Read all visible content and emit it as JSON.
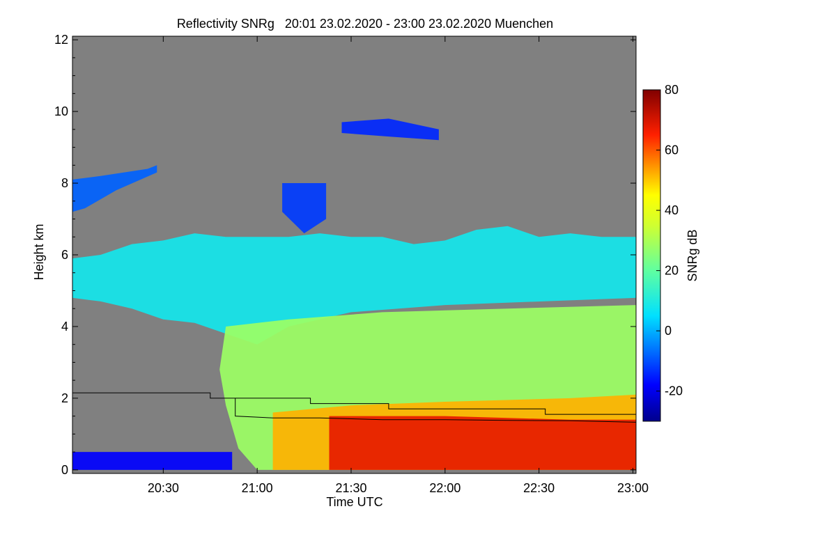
{
  "chart_data": {
    "type": "heatmap",
    "title": "Reflectivity SNRg   20:01 23.02.2020 - 23:00 23.02.2020 Muenchen",
    "xlabel": "Time UTC",
    "ylabel": "Height km",
    "colorbar_label": "SNRg dB",
    "xlim_minutes_utc": [
      1201,
      1381
    ],
    "ylim_km": [
      -0.1,
      12.1
    ],
    "x_ticks": [
      {
        "minutes_utc": 1230,
        "label": "20:30"
      },
      {
        "minutes_utc": 1260,
        "label": "21:00"
      },
      {
        "minutes_utc": 1290,
        "label": "21:30"
      },
      {
        "minutes_utc": 1320,
        "label": "22:00"
      },
      {
        "minutes_utc": 1350,
        "label": "22:30"
      },
      {
        "minutes_utc": 1380,
        "label": "23:00"
      }
    ],
    "y_ticks": [
      {
        "km": 0,
        "label": "0"
      },
      {
        "km": 2,
        "label": "2"
      },
      {
        "km": 4,
        "label": "4"
      },
      {
        "km": 6,
        "label": "6"
      },
      {
        "km": 8,
        "label": "8"
      },
      {
        "km": 10,
        "label": "10"
      },
      {
        "km": 12,
        "label": "12"
      }
    ],
    "colorbar": {
      "range_db": [
        -30,
        80
      ],
      "ticks": [
        {
          "db": -20,
          "label": "-20"
        },
        {
          "db": 0,
          "label": "0"
        },
        {
          "db": 20,
          "label": "20"
        },
        {
          "db": 40,
          "label": "40"
        },
        {
          "db": 60,
          "label": "60"
        },
        {
          "db": 80,
          "label": "80"
        }
      ],
      "stops": [
        {
          "db": -30,
          "color": "#00008c"
        },
        {
          "db": -18,
          "color": "#0000ff"
        },
        {
          "db": -5,
          "color": "#0080ff"
        },
        {
          "db": 5,
          "color": "#00e0ff"
        },
        {
          "db": 20,
          "color": "#60ffa0"
        },
        {
          "db": 35,
          "color": "#d0ff30"
        },
        {
          "db": 45,
          "color": "#ffff00"
        },
        {
          "db": 55,
          "color": "#ff9000"
        },
        {
          "db": 65,
          "color": "#ff2000"
        },
        {
          "db": 80,
          "color": "#800000"
        }
      ]
    },
    "background_color": "#808080",
    "echo_regions": [
      {
        "name": "main-cloud-upper",
        "top": [
          [
            1201,
            5.9
          ],
          [
            1210,
            6.0
          ],
          [
            1220,
            6.3
          ],
          [
            1230,
            6.4
          ],
          [
            1240,
            6.6
          ],
          [
            1250,
            6.5
          ],
          [
            1260,
            6.5
          ],
          [
            1270,
            6.5
          ],
          [
            1280,
            6.6
          ],
          [
            1290,
            6.5
          ],
          [
            1300,
            6.5
          ],
          [
            1310,
            6.3
          ],
          [
            1320,
            6.4
          ],
          [
            1330,
            6.7
          ],
          [
            1340,
            6.8
          ],
          [
            1350,
            6.5
          ],
          [
            1360,
            6.6
          ],
          [
            1370,
            6.5
          ],
          [
            1381,
            6.5
          ]
        ],
        "bottom": [
          [
            1381,
            4.8
          ],
          [
            1320,
            4.6
          ],
          [
            1290,
            4.4
          ],
          [
            1270,
            4.0
          ],
          [
            1260,
            3.5
          ],
          [
            1250,
            3.8
          ],
          [
            1240,
            4.1
          ],
          [
            1230,
            4.2
          ],
          [
            1220,
            4.5
          ],
          [
            1210,
            4.7
          ],
          [
            1201,
            4.8
          ]
        ],
        "db": 8
      },
      {
        "name": "precip-shaft",
        "top": [
          [
            1250,
            4.0
          ],
          [
            1270,
            4.2
          ],
          [
            1300,
            4.4
          ],
          [
            1340,
            4.5
          ],
          [
            1381,
            4.6
          ]
        ],
        "bottom": [
          [
            1381,
            0.0
          ],
          [
            1270,
            0.0
          ],
          [
            1260,
            0.0
          ],
          [
            1254,
            0.6
          ],
          [
            1250,
            1.8
          ],
          [
            1248,
            2.8
          ]
        ],
        "db": 28
      },
      {
        "name": "rain-lower-orange",
        "top": [
          [
            1265,
            1.6
          ],
          [
            1290,
            1.8
          ],
          [
            1320,
            1.9
          ],
          [
            1360,
            2.0
          ],
          [
            1381,
            2.1
          ]
        ],
        "bottom": [
          [
            1381,
            0.0
          ],
          [
            1265,
            0.0
          ]
        ],
        "db": 52
      },
      {
        "name": "rain-core-red",
        "top": [
          [
            1283,
            1.5
          ],
          [
            1320,
            1.5
          ],
          [
            1360,
            1.4
          ],
          [
            1381,
            1.4
          ]
        ],
        "bottom": [
          [
            1381,
            0.0
          ],
          [
            1283,
            0.0
          ]
        ],
        "db": 68
      },
      {
        "name": "upper-left-cloud",
        "top": [
          [
            1201,
            8.1
          ],
          [
            1210,
            8.2
          ],
          [
            1225,
            8.4
          ],
          [
            1228,
            8.5
          ]
        ],
        "bottom": [
          [
            1228,
            8.3
          ],
          [
            1215,
            7.8
          ],
          [
            1205,
            7.3
          ],
          [
            1201,
            7.2
          ]
        ],
        "db": -8
      },
      {
        "name": "low-clutter",
        "top": [
          [
            1201,
            0.5
          ],
          [
            1252,
            0.5
          ]
        ],
        "bottom": [
          [
            1252,
            0.0
          ],
          [
            1201,
            0.0
          ]
        ],
        "db": -18
      },
      {
        "name": "mid-cloud-8km",
        "top": [
          [
            1268,
            8.0
          ],
          [
            1282,
            8.0
          ]
        ],
        "bottom": [
          [
            1282,
            7.0
          ],
          [
            1275,
            6.6
          ],
          [
            1268,
            7.2
          ]
        ],
        "db": -12
      },
      {
        "name": "cirrus-10km",
        "top": [
          [
            1287,
            9.7
          ],
          [
            1302,
            9.8
          ],
          [
            1318,
            9.5
          ]
        ],
        "bottom": [
          [
            1318,
            9.2
          ],
          [
            1302,
            9.3
          ],
          [
            1287,
            9.4
          ]
        ],
        "db": -14
      }
    ],
    "boundary_lines": [
      {
        "name": "upper-step-line",
        "points": [
          [
            1201,
            2.15
          ],
          [
            1245,
            2.15
          ],
          [
            1245,
            2.0
          ],
          [
            1277,
            2.0
          ],
          [
            1277,
            1.85
          ],
          [
            1302,
            1.85
          ],
          [
            1302,
            1.7
          ],
          [
            1352,
            1.7
          ],
          [
            1352,
            1.55
          ],
          [
            1381,
            1.55
          ]
        ]
      },
      {
        "name": "cloud-base-line",
        "points": [
          [
            1253,
            2.0
          ],
          [
            1253,
            1.5
          ],
          [
            1265,
            1.45
          ],
          [
            1280,
            1.45
          ],
          [
            1300,
            1.4
          ],
          [
            1320,
            1.4
          ],
          [
            1340,
            1.38
          ],
          [
            1360,
            1.37
          ],
          [
            1381,
            1.33
          ]
        ]
      }
    ]
  }
}
